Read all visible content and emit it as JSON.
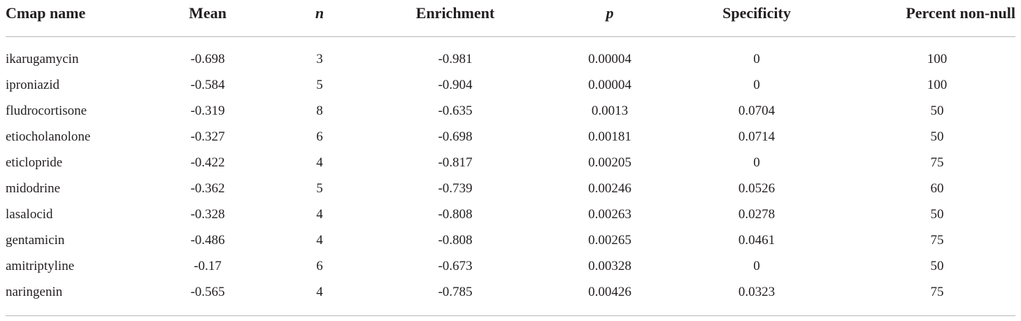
{
  "table": {
    "headers": [
      "Cmap name",
      "Mean",
      "n",
      "Enrichment",
      "p",
      "Specificity",
      "Percent non-null"
    ],
    "rows": [
      [
        "ikarugamycin",
        "-0.698",
        "3",
        "-0.981",
        "0.00004",
        "0",
        "100"
      ],
      [
        "iproniazid",
        "-0.584",
        "5",
        "-0.904",
        "0.00004",
        "0",
        "100"
      ],
      [
        "fludrocortisone",
        "-0.319",
        "8",
        "-0.635",
        "0.0013",
        "0.0704",
        "50"
      ],
      [
        "etiocholanolone",
        "-0.327",
        "6",
        "-0.698",
        "0.00181",
        "0.0714",
        "50"
      ],
      [
        "eticlopride",
        "-0.422",
        "4",
        "-0.817",
        "0.00205",
        "0",
        "75"
      ],
      [
        "midodrine",
        "-0.362",
        "5",
        "-0.739",
        "0.00246",
        "0.0526",
        "60"
      ],
      [
        "lasalocid",
        "-0.328",
        "4",
        "-0.808",
        "0.00263",
        "0.0278",
        "50"
      ],
      [
        "gentamicin",
        "-0.486",
        "4",
        "-0.808",
        "0.00265",
        "0.0461",
        "75"
      ],
      [
        "amitriptyline",
        "-0.17",
        "6",
        "-0.673",
        "0.00328",
        "0",
        "50"
      ],
      [
        "naringenin",
        "-0.565",
        "4",
        "-0.785",
        "0.00426",
        "0.0323",
        "75"
      ]
    ]
  }
}
